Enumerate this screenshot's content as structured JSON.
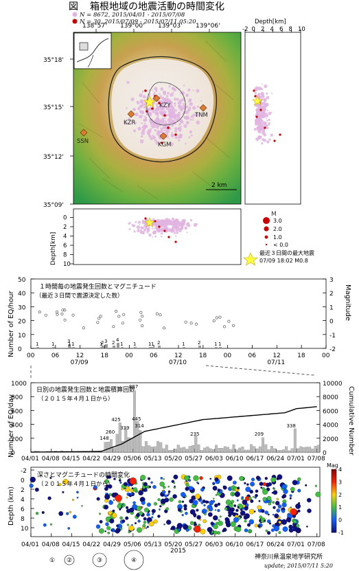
{
  "header": {
    "fig_label": "図",
    "title": "箱根地域の地震活動の時間変化",
    "legend_all": "N = 8672,  2015/04/01 - 2015/07/08",
    "legend_recent": "N = 30,     2015/07/09 - 2015/07/11 05:20",
    "color_all": "#e0b4e0",
    "color_recent": "#cc0000"
  },
  "map": {
    "lon_ticks": [
      "138°57'",
      "139°00'",
      "139°03'",
      "139°06'"
    ],
    "lat_ticks": [
      "35°18'",
      "35°15'",
      "35°12'",
      "35°09'"
    ],
    "stations": [
      "KZY",
      "TNM",
      "KZR",
      "SSN",
      "KGM"
    ],
    "scale": "2 km"
  },
  "depth_side": {
    "title": "Depth[km]",
    "ticks": [
      "-2",
      "0",
      "2",
      "4",
      "6",
      "8",
      "10"
    ]
  },
  "depth_bottom": {
    "ylabel": "Depth[km]",
    "ticks": [
      "0",
      "2",
      "4",
      "6",
      "8",
      "10"
    ]
  },
  "mag_legend": {
    "title": "M",
    "items": [
      "3.0",
      "2.0",
      "1.0",
      "< 0.0"
    ],
    "star_line1": "最近３日間の最大地震",
    "star_line2": "07/09  18:02  M0.8"
  },
  "hourly": {
    "title1": "１時間毎の地震発生回数とマグニチュード",
    "title2": "（最近３日間で震源決定した数）",
    "ylabel_left": "Number of EQ/hour",
    "ylabel_right": "Magnitude",
    "left_ticks": [
      "50",
      "40",
      "30",
      "20",
      "10",
      "0"
    ],
    "right_ticks": [
      "3",
      "2",
      "1",
      "0",
      "-1",
      "-2"
    ],
    "x_ticks": [
      "00",
      "06",
      "12",
      "18",
      "00",
      "06",
      "12",
      "18",
      "00",
      "06",
      "12",
      "18",
      "00"
    ],
    "day_labels": [
      "07/09",
      "07/10",
      "07/11"
    ],
    "counts": [
      "1",
      "1",
      "3",
      "1",
      "2",
      "3",
      "2",
      "4",
      "1",
      "1",
      "1",
      "1",
      "2",
      "1",
      "2",
      "1",
      "1",
      "1",
      "1"
    ]
  },
  "daily": {
    "title1": "日別の地震発生回数と地震積算回数",
    "title2": "（２０１５年４月１日から）",
    "ylabel_left": "Number of EQ/day",
    "ylabel_right": "Cumulative Number",
    "left_ticks": [
      "1000",
      "800",
      "600",
      "400",
      "200",
      "0"
    ],
    "right_ticks": [
      "10000",
      "8000",
      "6000",
      "4000",
      "2000",
      "0"
    ],
    "x_ticks": [
      "04/01",
      "04/08",
      "04/15",
      "04/22",
      "04/29",
      "05/06",
      "05/13",
      "05/20",
      "05/27",
      "06/03",
      "06/10",
      "06/17",
      "06/24",
      "07/01",
      "07/08"
    ],
    "peak_labels": [
      "887",
      "425",
      "445",
      "339",
      "314",
      "260",
      "235",
      "209",
      "338",
      "148"
    ]
  },
  "depthtime": {
    "title1": "深さとマグニチュードの時間変化",
    "title2": "（２０１５年４月１日から）",
    "ylabel": "Depth (km)",
    "y_ticks": [
      "-2",
      "0",
      "2",
      "4",
      "6",
      "8",
      "10"
    ],
    "x_ticks": [
      "04/01",
      "04/08",
      "04/15",
      "04/22",
      "04/29",
      "05/06",
      "05/13",
      "05/20",
      "05/27",
      "06/03",
      "06/10",
      "06/17",
      "06/24",
      "07/01",
      "07/08"
    ],
    "year": "2015",
    "mag_title": "Mag",
    "mag_ticks": [
      "4",
      "3",
      "2",
      "1",
      "0",
      "-1"
    ]
  },
  "bottom_legend": [
    "①",
    "②",
    "③",
    "④"
  ],
  "footer": {
    "org": "神奈川県温泉地学研究所",
    "update": "update;  2015/07/11   5:20"
  }
}
